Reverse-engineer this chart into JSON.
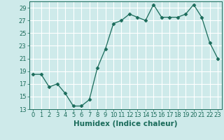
{
  "x": [
    0,
    1,
    2,
    3,
    4,
    5,
    6,
    7,
    8,
    9,
    10,
    11,
    12,
    13,
    14,
    15,
    16,
    17,
    18,
    19,
    20,
    21,
    22,
    23
  ],
  "y": [
    18.5,
    18.5,
    16.5,
    17,
    15.5,
    13.5,
    13.5,
    14.5,
    19.5,
    22.5,
    26.5,
    27,
    28,
    27.5,
    27,
    29.5,
    27.5,
    27.5,
    27.5,
    28,
    29.5,
    27.5,
    23.5,
    21
  ],
  "line_color": "#1a6b5a",
  "marker": "D",
  "marker_size": 2.5,
  "bg_color": "#ceeaea",
  "grid_color": "#ffffff",
  "xlabel": "Humidex (Indice chaleur)",
  "xlim": [
    -0.5,
    23.5
  ],
  "ylim": [
    13,
    30
  ],
  "yticks": [
    13,
    15,
    17,
    19,
    21,
    23,
    25,
    27,
    29
  ],
  "xtick_labels": [
    "0",
    "1",
    "2",
    "3",
    "4",
    "5",
    "6",
    "7",
    "8",
    "9",
    "10",
    "11",
    "12",
    "13",
    "14",
    "15",
    "16",
    "17",
    "18",
    "19",
    "20",
    "21",
    "22",
    "23"
  ],
  "tick_color": "#1a6b5a",
  "label_fontsize": 6,
  "xlabel_fontsize": 7.5
}
